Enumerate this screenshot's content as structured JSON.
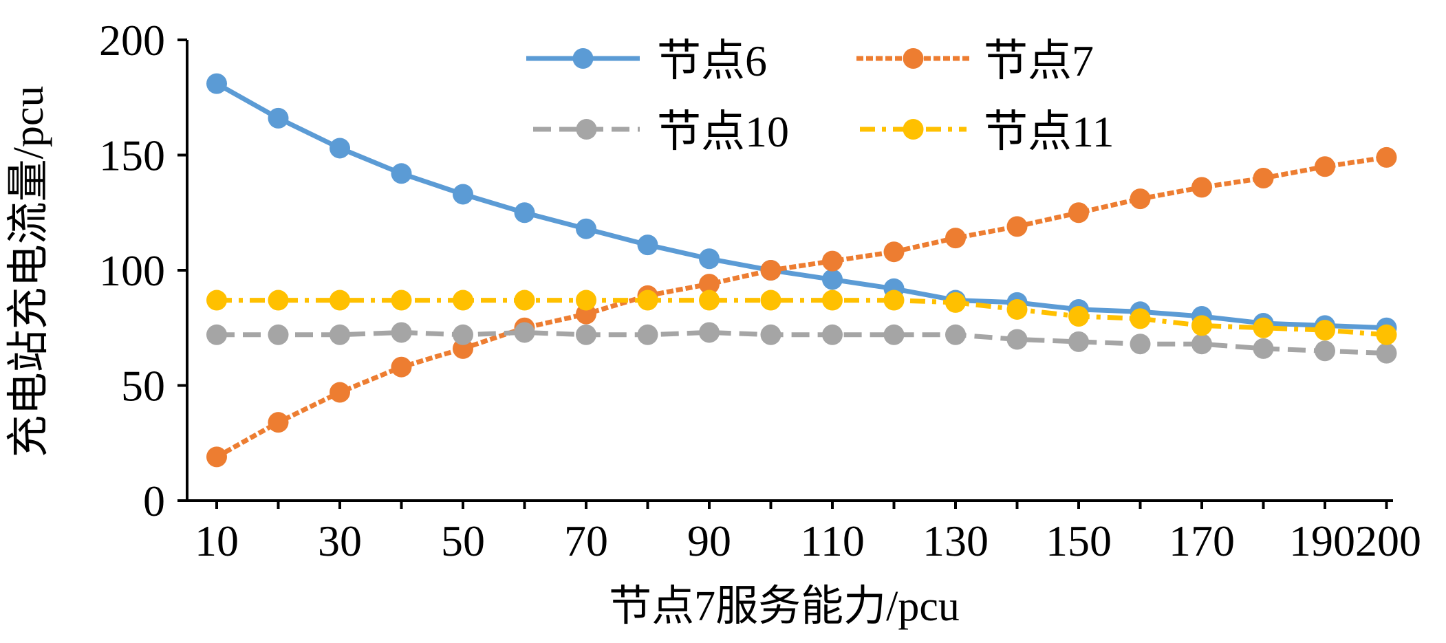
{
  "chart_data": {
    "type": "line",
    "xlabel": "节点7服务能力/pcu",
    "ylabel": "充电站充电流量/pcu",
    "x": [
      10,
      20,
      30,
      40,
      50,
      60,
      70,
      80,
      90,
      100,
      110,
      120,
      130,
      140,
      150,
      160,
      170,
      180,
      190,
      200
    ],
    "x_tick_labels": [
      "10",
      "30",
      "50",
      "70",
      "90",
      "110",
      "130",
      "150",
      "170",
      "190",
      "200"
    ],
    "x_tick_values": [
      10,
      30,
      50,
      70,
      90,
      110,
      130,
      150,
      170,
      190,
      200
    ],
    "y_ticks": [
      0,
      50,
      100,
      150,
      200
    ],
    "xlim": [
      5,
      200
    ],
    "ylim": [
      0,
      200
    ],
    "grid": false,
    "legend_position": "top-center",
    "series": [
      {
        "name": "节点6",
        "color": "#5B9BD5",
        "dash": "solid",
        "values": [
          181,
          166,
          153,
          142,
          133,
          125,
          118,
          111,
          105,
          100,
          96,
          92,
          87,
          86,
          83,
          82,
          80,
          77,
          76,
          75
        ]
      },
      {
        "name": "节点7",
        "color": "#ED7D31",
        "dash": "short-dash",
        "values": [
          19,
          34,
          47,
          58,
          66,
          75,
          81,
          89,
          94,
          100,
          104,
          108,
          114,
          119,
          125,
          131,
          136,
          140,
          145,
          149
        ]
      },
      {
        "name": "节点10",
        "color": "#A5A5A5",
        "dash": "dash",
        "values": [
          72,
          72,
          72,
          73,
          72,
          73,
          72,
          72,
          73,
          72,
          72,
          72,
          72,
          70,
          69,
          68,
          68,
          66,
          65,
          64
        ]
      },
      {
        "name": "节点11",
        "color": "#FFC000",
        "dash": "dash-dot",
        "values": [
          87,
          87,
          87,
          87,
          87,
          87,
          87,
          87,
          87,
          87,
          87,
          87,
          86,
          83,
          80,
          79,
          76,
          75,
          74,
          72
        ]
      }
    ]
  }
}
